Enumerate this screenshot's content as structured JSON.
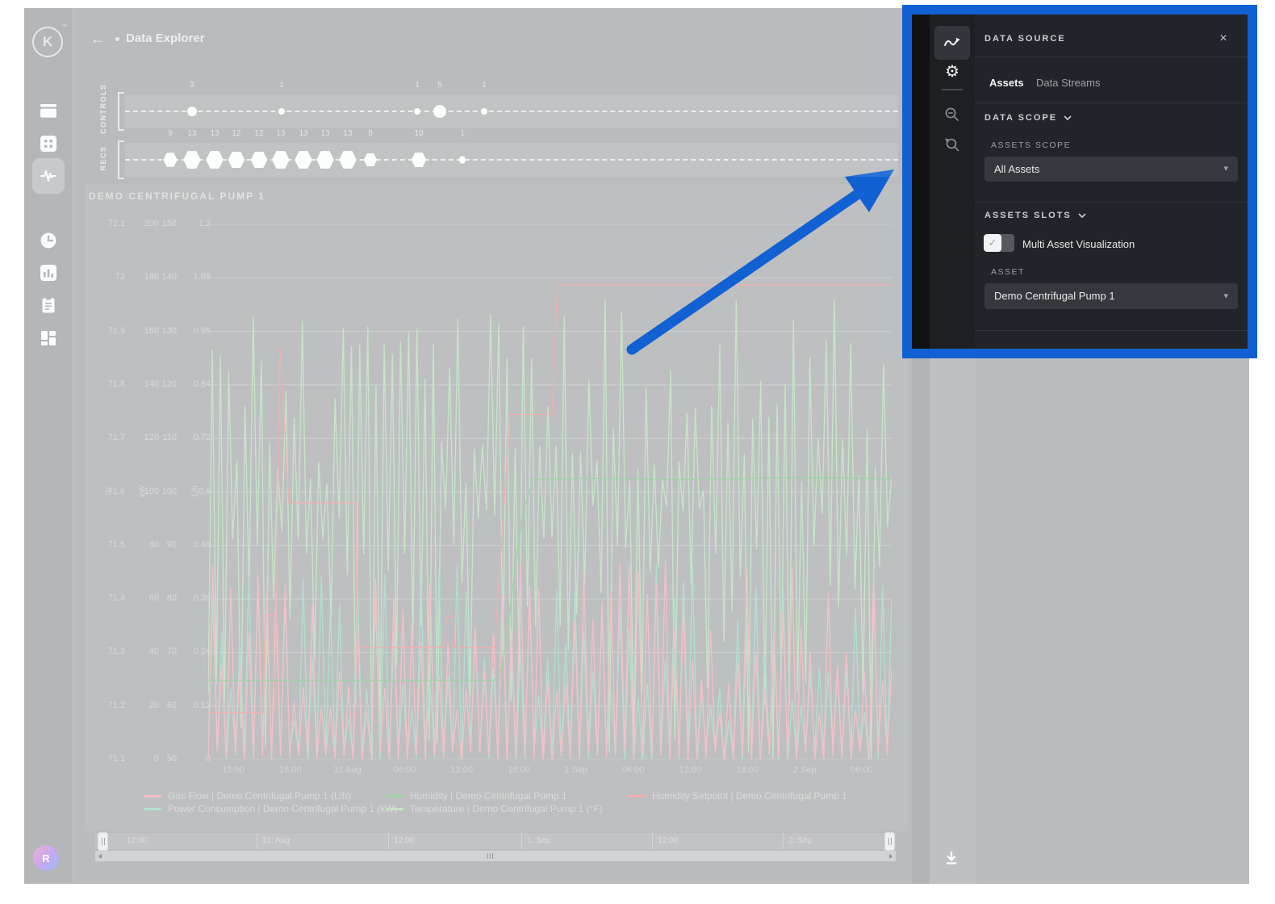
{
  "header": {
    "back": "←",
    "title": "Data Explorer"
  },
  "logo": {
    "letter": "K",
    "tm": "™"
  },
  "sidebar": {
    "avatar_letter": "R"
  },
  "lanes": [
    {
      "label": "CONTROLS",
      "shape": "circle",
      "markers": [
        {
          "x": 0.0866,
          "count": 3
        },
        {
          "x": 0.2025,
          "count": 1
        },
        {
          "x": 0.3779,
          "count": 1
        },
        {
          "x": 0.4071,
          "count": 5
        },
        {
          "x": 0.4645,
          "count": 1
        }
      ]
    },
    {
      "label": "RECS",
      "shape": "hex",
      "markers": [
        {
          "x": 0.0585,
          "count": 9
        },
        {
          "x": 0.0866,
          "count": 13
        },
        {
          "x": 0.1159,
          "count": 13
        },
        {
          "x": 0.144,
          "count": 12
        },
        {
          "x": 0.1733,
          "count": 12
        },
        {
          "x": 0.2014,
          "count": 13
        },
        {
          "x": 0.2307,
          "count": 13
        },
        {
          "x": 0.2589,
          "count": 13
        },
        {
          "x": 0.2881,
          "count": 13
        },
        {
          "x": 0.3173,
          "count": 8
        },
        {
          "x": 0.38,
          "count": 10
        },
        {
          "x": 0.4363,
          "count": 1
        }
      ]
    }
  ],
  "chart": {
    "title": "DEMO CENTRIFUGAL PUMP 1",
    "y_axes": [
      {
        "unit": "°F",
        "ticks": [
          "72.1",
          "72",
          "71.9",
          "71.8",
          "71.7",
          "71.6",
          "71.5",
          "71.4",
          "71.3",
          "71.2",
          "71.1"
        ]
      },
      {
        "unit": "kW",
        "ticks": [
          "200",
          "180",
          "160",
          "140",
          "120",
          "100",
          "80",
          "60",
          "40",
          "20",
          "0"
        ]
      },
      {
        "unit": "",
        "ticks": [
          "150",
          "140",
          "130",
          "120",
          "110",
          "100",
          "90",
          "80",
          "70",
          "60",
          "50"
        ]
      },
      {
        "unit": "L/h",
        "ticks": [
          "1.2",
          "1.08",
          "0.96",
          "0.84",
          "0.72",
          "0.6",
          "0.48",
          "0.36",
          "0.24",
          "0.12",
          "0"
        ]
      }
    ],
    "x_ticks": [
      "12:00",
      "18:00",
      "31 Aug",
      "06:00",
      "12:00",
      "18:00",
      "1 Sep",
      "06:00",
      "12:00",
      "18:00",
      "2 Sep",
      "06:00"
    ],
    "legend": [
      {
        "label": "Gas Flow | Demo Centrifugal Pump 1 (L/h)",
        "color": "#f2c0c8",
        "row": 0,
        "col": 0
      },
      {
        "label": "Humidity | Demo Centrifugal Pump 1",
        "color": "#9fd3a5",
        "row": 0,
        "col": 1
      },
      {
        "label": "Humidity Setpoint | Demo Centrifugal Pump 1",
        "color": "#f0b0b2",
        "row": 0,
        "col": 2
      },
      {
        "label": "Power Consumption | Demo Centrifugal Pump 1 (kW)",
        "color": "#b2dfce",
        "row": 1,
        "col": 0
      },
      {
        "label": "Temperature | Demo Centrifugal Pump 1 (°F)",
        "color": "#c6e4c8",
        "row": 1,
        "col": 1
      }
    ]
  },
  "chart_data": {
    "type": "line",
    "x_range_labels": [
      "12:00",
      "18:00",
      "31 Aug",
      "06:00",
      "12:00",
      "18:00",
      "1 Sep",
      "06:00",
      "12:00",
      "18:00",
      "2 Sep",
      "06:00"
    ],
    "series": [
      {
        "name": "Temperature | Demo Centrifugal Pump 1 (°F)",
        "unit": "°F",
        "axis_range": [
          71.1,
          72.1
        ],
        "style": "noise",
        "color": "#c6e4c8",
        "seed": 3,
        "points": 168,
        "band_low": [
          71.1,
          71.58
        ],
        "band_high": [
          71.6,
          71.96
        ]
      },
      {
        "name": "Power Consumption | Demo Centrifugal Pump 1 (kW)",
        "unit": "kW",
        "axis_range": [
          0,
          200
        ],
        "style": "noise",
        "color": "#b2dfce",
        "seed": 8,
        "points": 152,
        "band_low": [
          -2,
          5
        ],
        "band_high": [
          14,
          75
        ]
      },
      {
        "name": "Gas Flow | Demo Centrifugal Pump 1 (L/h)",
        "unit": "L/h",
        "axis_range": [
          0,
          1.2
        ],
        "style": "noise",
        "color": "#f2c0c8",
        "seed": 15,
        "points": 152,
        "band_low": [
          -0.01,
          0.02
        ],
        "band_high": [
          0.1,
          0.45
        ]
      },
      {
        "name": "Humidity Setpoint | Demo Centrifugal Pump 1",
        "unit": "%",
        "axis_range": [
          50,
          150
        ],
        "style": "step",
        "color": "#f0b0b2",
        "points_xy": [
          [
            0,
            58.8
          ],
          [
            0.081,
            58.8
          ],
          [
            0.083,
            77
          ],
          [
            0.095,
            77
          ],
          [
            0.097,
            58.8
          ],
          [
            0.098,
            58.8
          ],
          [
            0.105,
            127.4
          ],
          [
            0.118,
            98
          ],
          [
            0.216,
            98
          ],
          [
            0.218,
            70.9
          ],
          [
            0.346,
            70.9
          ],
          [
            0.348,
            76.8
          ],
          [
            0.359,
            76.8
          ],
          [
            0.361,
            70.9
          ],
          [
            0.419,
            70.9
          ],
          [
            0.4415,
            114.5
          ],
          [
            0.503,
            114.5
          ],
          [
            0.511,
            138.7
          ],
          [
            1,
            138.7
          ]
        ]
      },
      {
        "name": "Humidity | Demo Centrifugal Pump 1",
        "unit": "%",
        "axis_range": [
          50,
          150
        ],
        "style": "step",
        "color": "#9fd3a5",
        "points_xy": [
          [
            0,
            64.8
          ],
          [
            0.419,
            64.8
          ],
          [
            0.43,
            67
          ],
          [
            0.46,
            96
          ],
          [
            0.475,
            102.3
          ],
          [
            0.55,
            102.6
          ],
          [
            0.7,
            102.3
          ],
          [
            0.85,
            102.7
          ],
          [
            1,
            102.5
          ]
        ]
      }
    ]
  },
  "timeline": {
    "labels": [
      "12:00",
      "31. Aug",
      "12:00",
      "1. Sep",
      "12:00",
      "2. Sep"
    ]
  },
  "panel": {
    "title": "DATA SOURCE",
    "close": "×",
    "tabs": [
      {
        "label": "Assets"
      },
      {
        "label": "Data Streams"
      }
    ],
    "data_scope_header": "DATA SCOPE",
    "assets_scope_label": "ASSETS SCOPE",
    "assets_scope_value": "All Assets",
    "assets_slots_header": "ASSETS SLOTS",
    "toggle_label": "Multi Asset Visualization",
    "toggle_check": "✓",
    "asset_label": "ASSET",
    "asset_value": "Demo Centrifugal Pump 1",
    "caret": "▾",
    "gear": "⚙"
  },
  "colors": {
    "highlight_blue": "#1261d3",
    "panel_bg": "#212428",
    "app_bg": "#b9bbbd"
  }
}
